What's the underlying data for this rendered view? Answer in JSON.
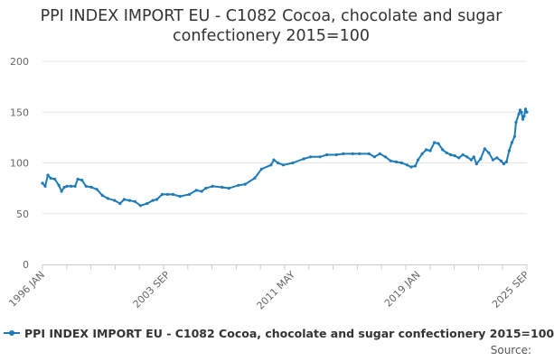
{
  "colors": {
    "series": "#1f7bb6",
    "grid": "#e6e6e6",
    "axis": "#cccccc",
    "text": "#333333",
    "tick": "#666666"
  },
  "footer": {
    "source": "Source:"
  },
  "chart_data": {
    "type": "line",
    "title_lines": [
      "PPI INDEX IMPORT EU - C1082 Cocoa, chocolate and sugar",
      "confectionery 2015=100"
    ],
    "xlabel": "",
    "ylabel": "",
    "ylim": [
      0,
      200
    ],
    "yticks": [
      0,
      50,
      100,
      150,
      200
    ],
    "xlim": [
      "1996-01",
      "2025-09"
    ],
    "xticks": [
      {
        "date": "1996-01",
        "label": "1996 JAN"
      },
      {
        "date": "2003-09",
        "label": "2003 SEP"
      },
      {
        "date": "2011-05",
        "label": "2011 MAY"
      },
      {
        "date": "2019-01",
        "label": "2019 JAN"
      },
      {
        "date": "2025-09",
        "label": "2025 SEP"
      }
    ],
    "grid": true,
    "legend_position": "bottom",
    "series": [
      {
        "name": "PPI INDEX IMPORT EU - C1082 Cocoa, chocolate and sugar confectionery 2015=100",
        "points": [
          [
            "1996-01",
            80
          ],
          [
            "1996-03",
            77
          ],
          [
            "1996-05",
            88
          ],
          [
            "1996-07",
            85
          ],
          [
            "1996-10",
            84
          ],
          [
            "1997-01",
            78
          ],
          [
            "1997-03",
            72
          ],
          [
            "1997-05",
            76
          ],
          [
            "1997-07",
            77
          ],
          [
            "1997-10",
            77
          ],
          [
            "1998-01",
            77
          ],
          [
            "1998-03",
            84
          ],
          [
            "1998-06",
            83
          ],
          [
            "1998-09",
            77
          ],
          [
            "1999-01",
            76
          ],
          [
            "1999-05",
            74
          ],
          [
            "1999-09",
            68
          ],
          [
            "2000-01",
            65
          ],
          [
            "2000-06",
            63
          ],
          [
            "2000-10",
            60
          ],
          [
            "2001-01",
            64
          ],
          [
            "2001-05",
            63
          ],
          [
            "2001-09",
            62
          ],
          [
            "2002-01",
            58
          ],
          [
            "2002-06",
            60
          ],
          [
            "2002-10",
            63
          ],
          [
            "2003-01",
            64
          ],
          [
            "2003-05",
            69
          ],
          [
            "2003-09",
            69
          ],
          [
            "2004-01",
            69
          ],
          [
            "2004-06",
            67
          ],
          [
            "2005-01",
            69
          ],
          [
            "2005-06",
            73
          ],
          [
            "2005-10",
            72
          ],
          [
            "2006-01",
            75
          ],
          [
            "2006-06",
            77
          ],
          [
            "2007-01",
            76
          ],
          [
            "2007-06",
            75
          ],
          [
            "2008-01",
            78
          ],
          [
            "2008-06",
            79
          ],
          [
            "2009-01",
            85
          ],
          [
            "2009-06",
            94
          ],
          [
            "2010-01",
            98
          ],
          [
            "2010-03",
            103
          ],
          [
            "2010-06",
            100
          ],
          [
            "2010-10",
            98
          ],
          [
            "2011-05",
            100
          ],
          [
            "2012-01",
            104
          ],
          [
            "2012-06",
            106
          ],
          [
            "2013-01",
            106
          ],
          [
            "2013-06",
            108
          ],
          [
            "2014-01",
            108
          ],
          [
            "2014-06",
            109
          ],
          [
            "2015-01",
            109
          ],
          [
            "2015-06",
            109
          ],
          [
            "2016-01",
            109
          ],
          [
            "2016-05",
            106
          ],
          [
            "2016-09",
            109
          ],
          [
            "2017-01",
            106
          ],
          [
            "2017-05",
            102
          ],
          [
            "2017-09",
            101
          ],
          [
            "2018-01",
            100
          ],
          [
            "2018-05",
            98
          ],
          [
            "2018-08",
            96
          ],
          [
            "2018-11",
            97
          ],
          [
            "2019-01",
            103
          ],
          [
            "2019-04",
            109
          ],
          [
            "2019-07",
            113
          ],
          [
            "2019-10",
            112
          ],
          [
            "2020-01",
            120
          ],
          [
            "2020-04",
            119
          ],
          [
            "2020-07",
            113
          ],
          [
            "2020-10",
            110
          ],
          [
            "2021-01",
            108
          ],
          [
            "2021-04",
            107
          ],
          [
            "2021-07",
            105
          ],
          [
            "2021-10",
            108
          ],
          [
            "2022-01",
            106
          ],
          [
            "2022-04",
            103
          ],
          [
            "2022-06",
            106
          ],
          [
            "2022-08",
            99
          ],
          [
            "2022-11",
            104
          ],
          [
            "2023-02",
            114
          ],
          [
            "2023-05",
            110
          ],
          [
            "2023-08",
            103
          ],
          [
            "2023-11",
            105
          ],
          [
            "2024-02",
            102
          ],
          [
            "2024-04",
            99
          ],
          [
            "2024-06",
            101
          ],
          [
            "2024-08",
            112
          ],
          [
            "2024-10",
            120
          ],
          [
            "2024-12",
            126
          ],
          [
            "2025-01",
            140
          ],
          [
            "2025-03",
            148
          ],
          [
            "2025-04",
            152
          ],
          [
            "2025-05",
            150
          ],
          [
            "2025-06",
            143
          ],
          [
            "2025-07",
            146
          ],
          [
            "2025-08",
            153
          ],
          [
            "2025-09",
            150
          ]
        ]
      }
    ]
  }
}
